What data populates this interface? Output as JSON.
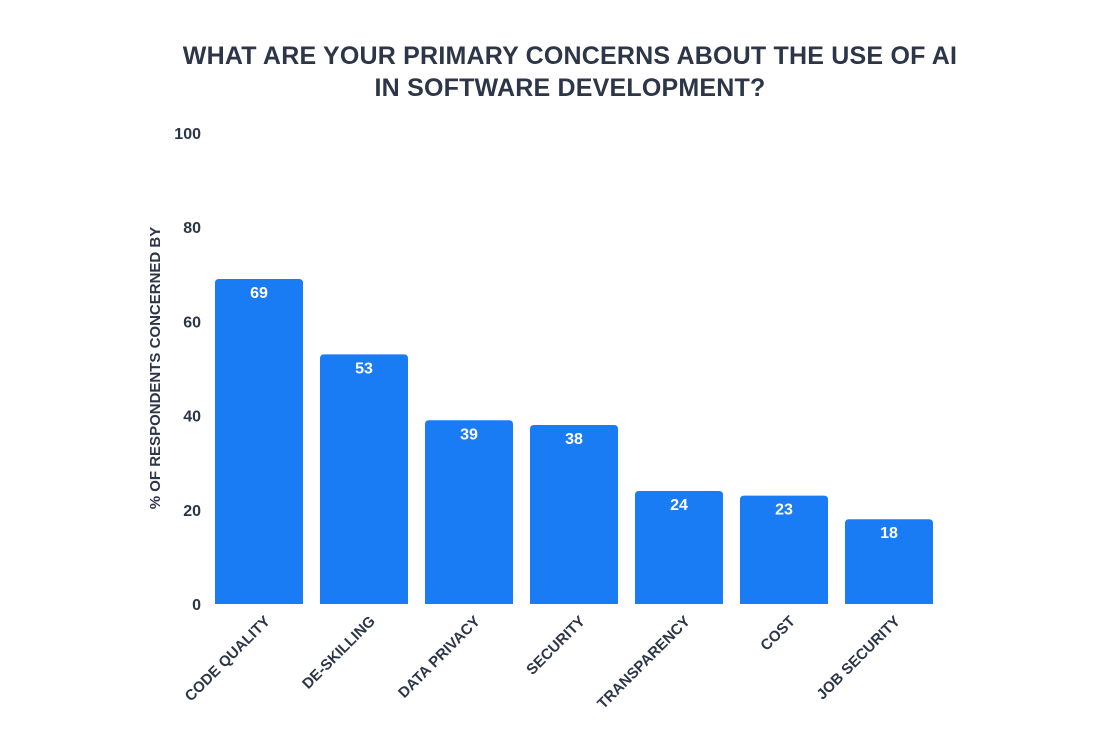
{
  "chart_data": {
    "type": "bar",
    "title_lines": [
      "WHAT ARE YOUR PRIMARY CONCERNS ABOUT THE USE OF AI",
      "IN SOFTWARE DEVELOPMENT?"
    ],
    "xlabel": "",
    "ylabel": "% OF RESPONDENTS CONCERNED BY",
    "ylim": [
      0,
      100
    ],
    "yticks": [
      0,
      20,
      40,
      60,
      80,
      100
    ],
    "grid": false,
    "categories": [
      "CODE QUALITY",
      "DE-SKILLING",
      "DATA PRIVACY",
      "SECURITY",
      "TRANSPARENCY",
      "COST",
      "JOB SECURITY"
    ],
    "values": [
      69,
      53,
      39,
      38,
      24,
      23,
      18
    ],
    "bar_color": "#1a7cf5",
    "text_color": "#2c3648"
  }
}
